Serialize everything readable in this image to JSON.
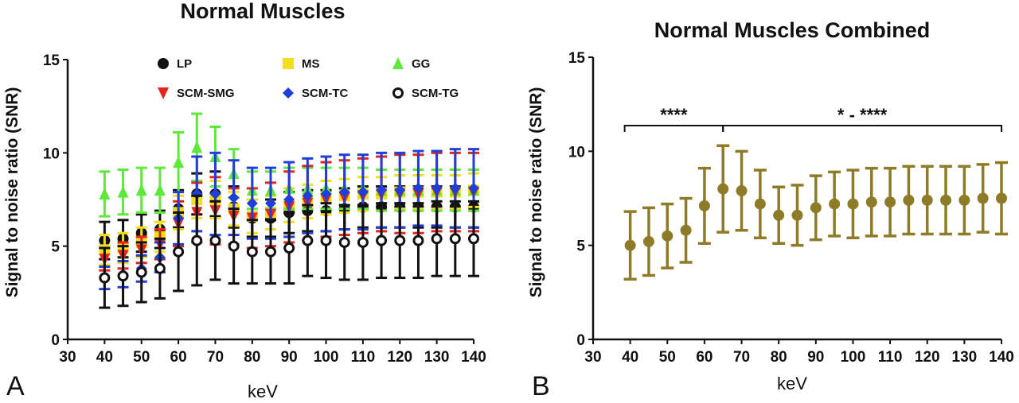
{
  "chart_data": [
    {
      "type": "scatter",
      "panel_label": "A",
      "title": "Normal Muscles",
      "xlabel": "keV",
      "ylabel": "Signal to noise ratio (SNR)",
      "xlim": [
        30,
        140
      ],
      "ylim": [
        0,
        15
      ],
      "xticks": [
        "30",
        "40",
        "50",
        "60",
        "70",
        "80",
        "90",
        "100",
        "110",
        "120",
        "130",
        "140"
      ],
      "yticks": [
        "0",
        "5",
        "10",
        "15"
      ],
      "legend_position": "top",
      "x": [
        40,
        45,
        50,
        55,
        60,
        65,
        70,
        75,
        80,
        85,
        90,
        95,
        100,
        105,
        110,
        115,
        120,
        125,
        130,
        135,
        140
      ],
      "series": [
        {
          "name": "LP",
          "marker": "circle",
          "color": "#111111",
          "mean": [
            5.3,
            5.4,
            5.7,
            5.9,
            7.0,
            7.8,
            7.8,
            7.1,
            6.5,
            6.5,
            6.8,
            6.9,
            6.9,
            7.0,
            7.1,
            7.1,
            7.1,
            7.1,
            7.1,
            7.1,
            7.1
          ],
          "sd": [
            1.0,
            1.0,
            1.0,
            1.0,
            1.0,
            1.1,
            1.2,
            1.1,
            1.0,
            1.0,
            1.1,
            1.1,
            1.1,
            1.1,
            1.1,
            1.1,
            1.1,
            1.1,
            1.1,
            1.1,
            1.1
          ]
        },
        {
          "name": "MS",
          "marker": "square",
          "color": "#f2de1a",
          "mean": [
            4.8,
            4.9,
            5.2,
            5.5,
            6.8,
            7.5,
            7.5,
            7.0,
            6.6,
            6.8,
            7.2,
            7.4,
            7.6,
            7.7,
            7.8,
            7.8,
            7.9,
            7.9,
            7.9,
            7.9,
            8.0
          ],
          "sd": [
            0.8,
            0.8,
            0.8,
            0.8,
            0.9,
            1.0,
            1.0,
            0.9,
            0.9,
            0.9,
            0.9,
            0.9,
            0.9,
            0.9,
            0.9,
            0.9,
            0.9,
            0.9,
            0.9,
            0.9,
            0.9
          ]
        },
        {
          "name": "GG",
          "marker": "triangle-up",
          "color": "#5ee83a",
          "mean": [
            7.8,
            7.9,
            8.0,
            8.0,
            9.5,
            10.3,
            9.8,
            8.9,
            8.0,
            8.0,
            8.1,
            8.1,
            8.1,
            8.1,
            8.1,
            8.0,
            8.0,
            8.0,
            8.0,
            8.0,
            8.0
          ],
          "sd": [
            1.2,
            1.2,
            1.2,
            1.2,
            1.6,
            1.8,
            1.6,
            1.3,
            1.0,
            1.0,
            1.1,
            1.1,
            1.1,
            1.1,
            1.1,
            1.1,
            1.1,
            1.1,
            1.1,
            1.1,
            1.1
          ]
        },
        {
          "name": "SCM-SMG",
          "marker": "triangle-down",
          "color": "#e8231c",
          "mean": [
            4.3,
            4.5,
            4.8,
            5.1,
            6.2,
            6.8,
            6.9,
            6.6,
            6.5,
            6.7,
            7.1,
            7.3,
            7.5,
            7.6,
            7.7,
            7.8,
            7.8,
            7.8,
            7.9,
            7.9,
            7.9
          ],
          "sd": [
            0.6,
            0.7,
            0.7,
            0.8,
            1.2,
            1.6,
            1.8,
            1.5,
            1.6,
            1.7,
            1.9,
            2.0,
            2.0,
            2.0,
            2.0,
            2.0,
            2.1,
            2.1,
            2.1,
            2.1,
            2.1
          ]
        },
        {
          "name": "SCM-TC",
          "marker": "diamond",
          "color": "#1f3fd8",
          "mean": [
            3.3,
            3.5,
            3.8,
            4.4,
            6.5,
            7.8,
            7.8,
            7.6,
            7.3,
            7.3,
            7.5,
            7.7,
            7.8,
            7.9,
            7.9,
            8.0,
            8.0,
            8.1,
            8.1,
            8.1,
            8.1
          ],
          "sd": [
            0.6,
            0.7,
            0.7,
            0.8,
            1.4,
            2.0,
            2.2,
            2.0,
            1.9,
            1.9,
            2.0,
            2.0,
            2.0,
            2.0,
            2.0,
            2.0,
            2.0,
            2.0,
            2.0,
            2.1,
            2.1
          ]
        },
        {
          "name": "SCM-TG",
          "marker": "circle-open",
          "color": "#111111",
          "mean": [
            3.3,
            3.4,
            3.6,
            3.8,
            4.7,
            5.3,
            5.3,
            5.0,
            4.7,
            4.7,
            4.9,
            5.3,
            5.3,
            5.2,
            5.2,
            5.3,
            5.3,
            5.3,
            5.4,
            5.4,
            5.4
          ],
          "sd": [
            1.6,
            1.6,
            1.6,
            1.6,
            2.1,
            2.4,
            2.1,
            2.0,
            1.7,
            1.7,
            1.9,
            1.9,
            2.0,
            2.0,
            2.0,
            2.0,
            2.0,
            2.0,
            2.0,
            2.0,
            2.0
          ]
        }
      ]
    },
    {
      "type": "scatter",
      "panel_label": "B",
      "title": "Normal Muscles Combined",
      "xlabel": "keV",
      "ylabel": "Signal to noise ratio (SNR)",
      "xlim": [
        30,
        140
      ],
      "ylim": [
        0,
        15
      ],
      "xticks": [
        "30",
        "40",
        "50",
        "60",
        "70",
        "80",
        "90",
        "100",
        "110",
        "120",
        "130",
        "140"
      ],
      "yticks": [
        "0",
        "5",
        "10",
        "15"
      ],
      "x": [
        40,
        45,
        50,
        55,
        60,
        65,
        70,
        75,
        80,
        85,
        90,
        95,
        100,
        105,
        110,
        115,
        120,
        125,
        130,
        135,
        140
      ],
      "series": [
        {
          "name": "",
          "marker": "circle",
          "color": "#8d7b27",
          "mean": [
            5.0,
            5.2,
            5.5,
            5.8,
            7.1,
            8.0,
            7.9,
            7.2,
            6.6,
            6.6,
            7.0,
            7.2,
            7.2,
            7.3,
            7.3,
            7.4,
            7.4,
            7.4,
            7.4,
            7.5,
            7.5
          ],
          "sd": [
            1.8,
            1.8,
            1.7,
            1.7,
            2.0,
            2.3,
            2.1,
            1.8,
            1.5,
            1.6,
            1.7,
            1.7,
            1.8,
            1.8,
            1.8,
            1.8,
            1.8,
            1.8,
            1.8,
            1.8,
            1.9
          ]
        }
      ],
      "annotations": [
        {
          "text": "****",
          "x_from": 38.5,
          "x_to": 65
        },
        {
          "text": "* - ****",
          "x_from": 65,
          "x_to": 140
        }
      ]
    }
  ],
  "colors": {
    "axis": "#111111",
    "combined": "#8d7b27"
  }
}
